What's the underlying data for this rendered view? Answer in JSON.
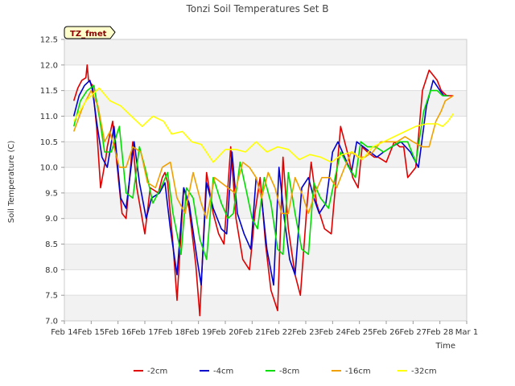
{
  "chart_data": {
    "type": "line",
    "title": "Tonzi Soil Temperatures Set B",
    "xlabel": "Time",
    "ylabel": "Soil Temperature (C)",
    "badge": "TZ_fmet",
    "xlim": [
      0,
      15
    ],
    "ylim": [
      7.0,
      12.5
    ],
    "x_ticks": [
      {
        "x": 0,
        "label": "Feb 14"
      },
      {
        "x": 1,
        "label": "Feb 15"
      },
      {
        "x": 2,
        "label": "Feb 16"
      },
      {
        "x": 3,
        "label": "Feb 17"
      },
      {
        "x": 4,
        "label": "Feb 18"
      },
      {
        "x": 5,
        "label": "Feb 19"
      },
      {
        "x": 6,
        "label": "Feb 20"
      },
      {
        "x": 7,
        "label": "Feb 21"
      },
      {
        "x": 8,
        "label": "Feb 22"
      },
      {
        "x": 9,
        "label": "Feb 23"
      },
      {
        "x": 10,
        "label": "Feb 24"
      },
      {
        "x": 11,
        "label": "Feb 25"
      },
      {
        "x": 12,
        "label": "Feb 26"
      },
      {
        "x": 13,
        "label": "Feb 27"
      },
      {
        "x": 14,
        "label": "Feb 28"
      },
      {
        "x": 15,
        "label": "Mar 1"
      }
    ],
    "y_ticks": [
      {
        "y": 7.0,
        "label": "7.0"
      },
      {
        "y": 7.5,
        "label": "7.5"
      },
      {
        "y": 8.0,
        "label": "8.0"
      },
      {
        "y": 8.5,
        "label": "8.5"
      },
      {
        "y": 9.0,
        "label": "9.0"
      },
      {
        "y": 9.5,
        "label": "9.5"
      },
      {
        "y": 10.0,
        "label": "10.0"
      },
      {
        "y": 10.5,
        "label": "10.5"
      },
      {
        "y": 11.0,
        "label": "11.0"
      },
      {
        "y": 11.5,
        "label": "11.5"
      },
      {
        "y": 12.0,
        "label": "12.0"
      },
      {
        "y": 12.5,
        "label": "12.5"
      }
    ],
    "grid": true,
    "legend_position": "bottom",
    "series": [
      {
        "name": "-2cm",
        "color": "#e00000",
        "x": [
          0.35,
          0.5,
          0.65,
          0.8,
          0.85,
          0.9,
          1.05,
          1.2,
          1.35,
          1.55,
          1.6,
          1.8,
          2.05,
          2.15,
          2.3,
          2.55,
          2.7,
          3.0,
          3.2,
          3.5,
          3.65,
          3.75,
          3.85,
          4.05,
          4.2,
          4.45,
          4.65,
          4.9,
          5.05,
          5.3,
          5.55,
          5.75,
          5.95,
          6.2,
          6.4,
          6.65,
          6.9,
          7.0,
          7.1,
          7.3,
          7.5,
          7.7,
          7.95,
          8.15,
          8.35,
          8.6,
          8.8,
          9.05,
          9.2,
          9.4,
          9.7,
          9.95,
          10.1,
          10.3,
          10.6,
          10.75,
          10.95,
          11.1,
          11.3,
          11.55,
          11.7,
          12.0,
          12.3,
          12.5,
          12.65,
          12.8,
          13.1,
          13.35,
          13.6,
          13.9,
          14.05,
          14.25,
          14.35,
          14.5
        ],
        "y": [
          11.3,
          11.55,
          11.7,
          11.75,
          12.0,
          11.7,
          11.6,
          10.8,
          9.6,
          10.2,
          10.4,
          10.9,
          9.6,
          9.1,
          9.0,
          10.5,
          9.6,
          8.7,
          9.6,
          9.5,
          9.8,
          9.9,
          9.7,
          8.5,
          7.4,
          9.6,
          9.2,
          8.1,
          7.1,
          9.9,
          9.1,
          8.7,
          8.5,
          10.4,
          9.0,
          8.2,
          8.0,
          8.5,
          9.1,
          9.8,
          8.5,
          7.6,
          7.2,
          10.2,
          8.8,
          7.9,
          7.5,
          9.3,
          10.1,
          9.3,
          8.8,
          8.7,
          9.6,
          10.8,
          10.2,
          9.8,
          9.6,
          10.4,
          10.3,
          10.2,
          10.2,
          10.1,
          10.5,
          10.4,
          10.4,
          9.8,
          10.0,
          11.5,
          11.9,
          11.7,
          11.5,
          11.4,
          11.4,
          11.4
        ]
      },
      {
        "name": "-4cm",
        "color": "#0000cc",
        "x": [
          0.35,
          0.55,
          0.75,
          0.95,
          1.05,
          1.2,
          1.4,
          1.6,
          1.85,
          2.1,
          2.3,
          2.6,
          2.8,
          3.05,
          3.25,
          3.55,
          3.75,
          3.95,
          4.2,
          4.45,
          4.65,
          4.95,
          5.1,
          5.3,
          5.55,
          5.85,
          6.05,
          6.25,
          6.45,
          6.7,
          6.95,
          7.15,
          7.35,
          7.55,
          7.8,
          8.0,
          8.2,
          8.4,
          8.6,
          8.85,
          9.1,
          9.3,
          9.5,
          9.75,
          10.0,
          10.2,
          10.45,
          10.7,
          10.9,
          11.15,
          11.4,
          11.65,
          11.9,
          12.2,
          12.55,
          12.9,
          13.2,
          13.5,
          13.75,
          14.0,
          14.15,
          14.3
        ],
        "y": [
          11.0,
          11.4,
          11.6,
          11.7,
          11.5,
          10.9,
          10.2,
          10.0,
          10.8,
          9.4,
          9.2,
          10.5,
          9.7,
          9.0,
          9.4,
          9.5,
          9.7,
          8.8,
          7.9,
          9.6,
          9.3,
          8.2,
          7.7,
          9.7,
          9.2,
          8.8,
          8.7,
          10.3,
          9.1,
          8.7,
          8.4,
          9.8,
          9.4,
          8.4,
          7.7,
          10.0,
          9.0,
          8.2,
          7.9,
          9.6,
          9.8,
          9.4,
          9.1,
          9.3,
          10.3,
          10.5,
          10.2,
          9.9,
          10.5,
          10.4,
          10.3,
          10.2,
          10.3,
          10.4,
          10.5,
          10.3,
          10.0,
          11.2,
          11.7,
          11.5,
          11.4,
          11.4
        ]
      },
      {
        "name": "-8cm",
        "color": "#00dd00",
        "x": [
          0.35,
          0.6,
          0.85,
          1.1,
          1.3,
          1.5,
          1.75,
          2.05,
          2.3,
          2.55,
          2.8,
          3.05,
          3.3,
          3.6,
          3.85,
          4.05,
          4.35,
          4.55,
          4.8,
          5.05,
          5.3,
          5.55,
          5.85,
          6.1,
          6.3,
          6.55,
          6.8,
          7.0,
          7.2,
          7.45,
          7.7,
          7.95,
          8.15,
          8.35,
          8.6,
          8.85,
          9.1,
          9.3,
          9.55,
          9.85,
          10.05,
          10.3,
          10.6,
          10.85,
          11.05,
          11.3,
          11.6,
          11.9,
          12.2,
          12.5,
          12.8,
          13.1,
          13.4,
          13.65,
          13.9,
          14.1,
          14.3
        ],
        "y": [
          10.8,
          11.3,
          11.5,
          11.6,
          11.0,
          10.3,
          10.3,
          10.8,
          9.5,
          9.4,
          10.4,
          9.9,
          9.3,
          9.6,
          9.9,
          9.1,
          8.3,
          9.6,
          9.4,
          8.6,
          8.2,
          9.8,
          9.3,
          9.0,
          9.1,
          10.1,
          9.5,
          9.0,
          8.8,
          9.8,
          9.3,
          8.4,
          8.3,
          9.9,
          9.1,
          8.4,
          8.3,
          9.7,
          9.4,
          9.2,
          9.7,
          10.3,
          10.0,
          9.8,
          10.5,
          10.4,
          10.4,
          10.3,
          10.4,
          10.5,
          10.5,
          10.1,
          11.1,
          11.5,
          11.5,
          11.4,
          11.4
        ]
      },
      {
        "name": "-16cm",
        "color": "#f0a000",
        "x": [
          0.35,
          0.7,
          1.0,
          1.25,
          1.5,
          1.7,
          2.05,
          2.3,
          2.55,
          2.85,
          3.1,
          3.4,
          3.65,
          3.95,
          4.2,
          4.5,
          4.8,
          5.1,
          5.3,
          5.6,
          5.85,
          6.1,
          6.35,
          6.65,
          6.9,
          7.15,
          7.35,
          7.6,
          7.85,
          8.1,
          8.35,
          8.6,
          8.85,
          9.1,
          9.35,
          9.6,
          9.9,
          10.15,
          10.45,
          10.7,
          10.95,
          11.2,
          11.5,
          11.8,
          12.1,
          12.4,
          12.7,
          13.0,
          13.35,
          13.6,
          13.85,
          14.05,
          14.2,
          14.35,
          14.5
        ],
        "y": [
          10.7,
          11.2,
          11.5,
          11.2,
          10.5,
          10.7,
          10.0,
          10.0,
          10.4,
          10.3,
          9.7,
          9.6,
          10.0,
          10.1,
          9.4,
          9.1,
          9.9,
          9.3,
          9.0,
          9.8,
          9.7,
          9.6,
          9.5,
          10.1,
          10.0,
          9.8,
          9.4,
          9.9,
          9.6,
          9.1,
          9.1,
          9.8,
          9.5,
          9.1,
          9.5,
          9.8,
          9.8,
          9.6,
          10.0,
          10.3,
          10.2,
          10.2,
          10.3,
          10.5,
          10.5,
          10.5,
          10.6,
          10.5,
          10.4,
          10.4,
          10.9,
          11.1,
          11.3,
          11.35,
          11.4
        ]
      },
      {
        "name": "-32cm",
        "color": "#ffff00",
        "x": [
          0.35,
          0.8,
          1.3,
          1.7,
          2.1,
          2.5,
          2.9,
          3.3,
          3.7,
          4.0,
          4.4,
          4.75,
          5.1,
          5.55,
          6.0,
          6.4,
          6.75,
          7.15,
          7.55,
          7.95,
          8.35,
          8.75,
          9.15,
          9.55,
          9.95,
          10.35,
          10.75,
          11.1,
          11.5,
          11.9,
          12.3,
          12.7,
          13.1,
          13.5,
          13.9,
          14.1,
          14.3,
          14.5
        ],
        "y": [
          10.9,
          11.3,
          11.55,
          11.3,
          11.2,
          11.0,
          10.8,
          11.0,
          10.9,
          10.65,
          10.7,
          10.5,
          10.45,
          10.1,
          10.35,
          10.35,
          10.3,
          10.5,
          10.3,
          10.4,
          10.35,
          10.15,
          10.25,
          10.2,
          10.1,
          10.25,
          10.3,
          10.15,
          10.4,
          10.5,
          10.6,
          10.7,
          10.8,
          10.85,
          10.85,
          10.8,
          10.9,
          11.05
        ]
      }
    ]
  }
}
